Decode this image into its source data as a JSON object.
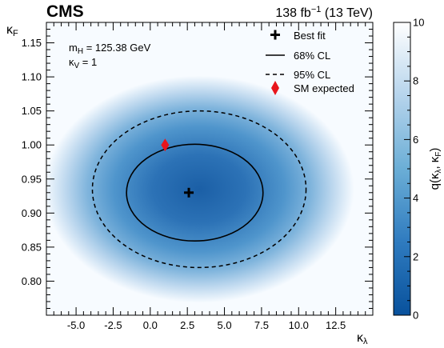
{
  "header": {
    "experiment": "CMS",
    "lumi_prefix": "138 fb",
    "lumi_exp": "−1",
    "lumi_suffix": " (13 TeV)"
  },
  "annotations": {
    "mh_main": "m",
    "mh_sub": "H",
    "mh_rest": " = 125.38 GeV",
    "kv_main": "κ",
    "kv_sub": "V",
    "kv_rest": " = 1"
  },
  "colorbar": {
    "label_main": "q(κ",
    "label_sub1": "λ",
    "label_mid": ", κ",
    "label_sub2": "F",
    "label_end": ")",
    "range": [
      0,
      10
    ],
    "ticks": [
      0,
      2,
      4,
      6,
      8,
      10
    ],
    "colors": {
      "low": "#08519c",
      "mid": "#6baed6",
      "high": "#ffffff"
    }
  },
  "chart_data": {
    "type": "heatmap",
    "xlabel_main": "κ",
    "xlabel_sub": "λ",
    "ylabel_main": "κ",
    "ylabel_sub": "F",
    "xlim": [
      -7,
      15
    ],
    "ylim": [
      0.75,
      1.18
    ],
    "xticks": [
      -5.0,
      -2.5,
      0.0,
      2.5,
      5.0,
      7.5,
      10.0,
      12.5
    ],
    "xtick_labels": [
      "-5.0",
      "-2.5",
      "0.0",
      "2.5",
      "5.0",
      "7.5",
      "10.0",
      "12.5"
    ],
    "yticks": [
      0.8,
      0.85,
      0.9,
      0.95,
      1.0,
      1.05,
      1.1,
      1.15
    ],
    "ytick_labels": [
      "0.80",
      "0.85",
      "0.90",
      "0.95",
      "1.00",
      "1.05",
      "1.10",
      "1.15"
    ],
    "best_fit": {
      "x": 2.6,
      "y": 0.93
    },
    "sm_expected": {
      "x": 1.0,
      "y": 1.0
    },
    "cl68": {
      "center_x": 3.0,
      "center_y": 0.93,
      "rx": 4.6,
      "ry": 0.071
    },
    "cl95": {
      "center_x": 3.3,
      "center_y": 0.935,
      "rx": 7.2,
      "ry": 0.115
    },
    "legend": {
      "placement": "top-right",
      "items": [
        {
          "key": "best_fit",
          "label": "Best fit"
        },
        {
          "key": "cl68",
          "label": "68% CL"
        },
        {
          "key": "cl95",
          "label": "95% CL"
        },
        {
          "key": "sm",
          "label": "SM expected"
        }
      ]
    }
  }
}
